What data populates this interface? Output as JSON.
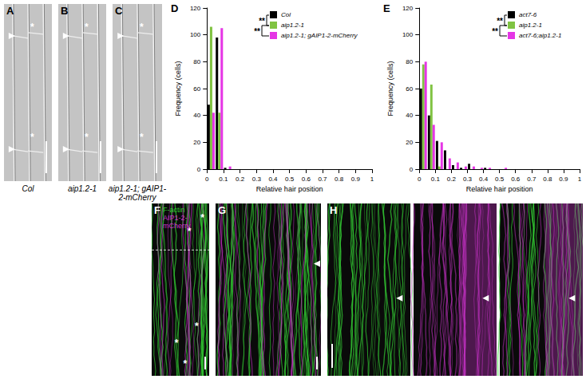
{
  "panels": [
    {
      "label": "A",
      "caption": "Col",
      "marks": [
        "*",
        "*"
      ]
    },
    {
      "label": "B",
      "caption": "aip1.2-1",
      "marks": [
        "*",
        "*"
      ]
    },
    {
      "label": "C",
      "caption": "aip1.2-1; gAIP1-2-mCherry",
      "marks": [
        "*",
        "*"
      ]
    },
    {
      "label": "F",
      "channels": [
        {
          "name": "F-actin",
          "color": "#33cc33"
        },
        {
          "name": "AIP1-2-mCherry",
          "color": "#cc33cc"
        }
      ],
      "marks": [
        "*",
        "*",
        "*",
        "*",
        "*"
      ]
    },
    {
      "label": "G"
    },
    {
      "label": "H"
    }
  ],
  "chart_data": [
    {
      "type": "histogram",
      "panel": "D",
      "xlabel": "Relative hair position",
      "ylabel": "Frequency (cells)",
      "bins": [
        0,
        0.05,
        0.1,
        0.15,
        0.2,
        0.25,
        0.3,
        0.35,
        0.4,
        0.45,
        0.5,
        0.55,
        0.6,
        0.65,
        0.7,
        0.75,
        0.8,
        0.85,
        0.9,
        0.95,
        1
      ],
      "series": [
        {
          "name": "Col",
          "color": "#000000",
          "values": [
            48,
            98,
            1,
            0,
            0,
            0,
            0,
            0,
            0,
            0,
            0,
            0,
            0,
            0,
            0,
            0,
            0,
            0,
            0,
            0
          ]
        },
        {
          "name": "aip1.2-1",
          "color": "#80c342",
          "values": [
            106,
            42,
            0,
            0,
            0,
            0,
            0,
            0,
            0,
            0,
            0,
            0,
            0,
            0,
            0,
            0,
            0,
            0,
            0,
            0
          ]
        },
        {
          "name": "aip1.2-1; gAIP1-2-mCherry",
          "color": "#e535e5",
          "values": [
            42,
            105,
            2,
            0,
            0,
            0,
            0,
            0,
            0,
            0,
            0,
            0,
            0,
            0,
            0,
            0,
            0,
            0,
            0,
            0
          ]
        }
      ],
      "xlim": [
        0,
        1
      ],
      "xticks": [
        0,
        0.1,
        0.2,
        0.3,
        0.4,
        0.5,
        0.6,
        0.7,
        0.8,
        0.9,
        1
      ],
      "ylim": [
        0,
        120
      ],
      "yticks": [
        0,
        20,
        40,
        60,
        80,
        100,
        120
      ],
      "grid": false,
      "legend": "upper right",
      "annotations": [
        {
          "text": "**",
          "between": [
            "Col",
            "aip1.2-1"
          ]
        },
        {
          "text": "**",
          "between": [
            "aip1.2-1",
            "aip1.2-1; gAIP1-2-mCherry"
          ]
        }
      ]
    },
    {
      "type": "histogram",
      "panel": "E",
      "xlabel": "Relative hair position",
      "ylabel": "Frequency (cells)",
      "bins": [
        0,
        0.05,
        0.1,
        0.15,
        0.2,
        0.25,
        0.3,
        0.35,
        0.4,
        0.45,
        0.5,
        0.55,
        0.6,
        0.65,
        0.7,
        0.75,
        0.8,
        0.85,
        0.9,
        0.95,
        1
      ],
      "series": [
        {
          "name": "act7-6",
          "color": "#000000",
          "values": [
            60,
            40,
            21,
            14,
            3,
            1,
            4,
            0,
            1,
            0,
            0,
            0,
            0,
            0,
            0,
            0,
            0,
            0,
            0,
            0
          ]
        },
        {
          "name": "aip1.2-1",
          "color": "#80c342",
          "values": [
            78,
            63,
            2,
            0,
            0,
            0,
            0,
            0,
            0,
            0,
            0,
            0,
            0,
            0,
            0,
            0,
            0,
            0,
            0,
            0
          ]
        },
        {
          "name": "act7-6;aip1.2-1",
          "color": "#e535e5",
          "values": [
            80,
            33,
            20,
            8,
            5,
            2,
            2,
            1,
            1,
            0,
            1,
            0,
            0,
            0,
            0,
            0,
            0,
            0,
            0,
            0
          ]
        }
      ],
      "xlim": [
        0,
        1
      ],
      "xticks": [
        0,
        0.1,
        0.2,
        0.3,
        0.4,
        0.5,
        0.6,
        0.7,
        0.8,
        0.9,
        1
      ],
      "ylim": [
        0,
        120
      ],
      "yticks": [
        0,
        20,
        40,
        60,
        80,
        100,
        120
      ],
      "grid": false,
      "legend": "upper right",
      "annotations": [
        {
          "text": "**",
          "between": [
            "act7-6",
            "aip1.2-1"
          ]
        },
        {
          "text": "**",
          "between": [
            "aip1.2-1",
            "act7-6;aip1.2-1"
          ]
        }
      ]
    }
  ]
}
